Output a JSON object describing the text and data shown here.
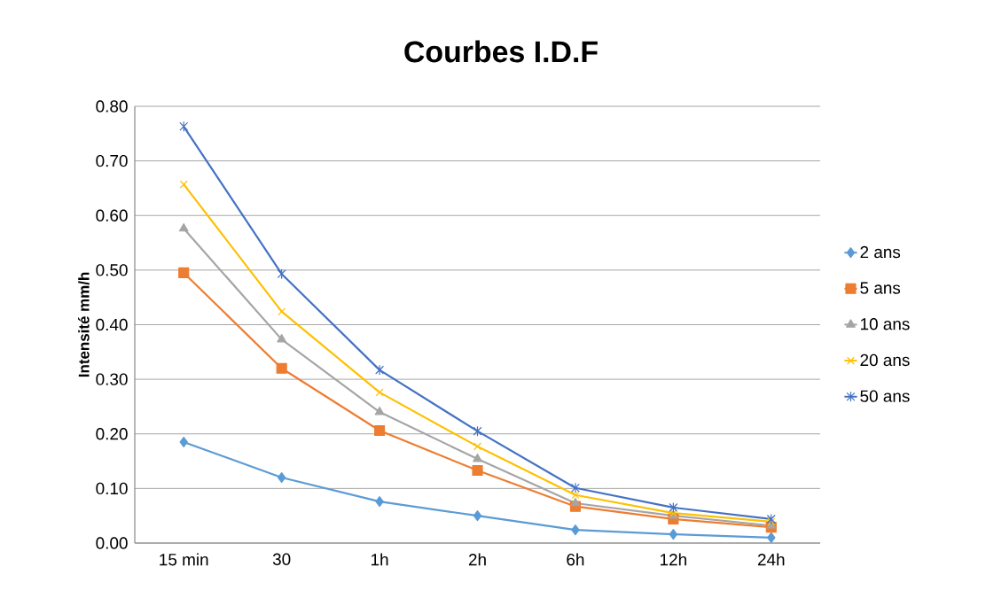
{
  "chart_data": {
    "type": "line",
    "title": "Courbes I.D.F",
    "ylabel": "Intensité mm/h",
    "categories": [
      "15 min",
      "30",
      "1h",
      "2h",
      "6h",
      "12h",
      "24h"
    ],
    "series": [
      {
        "name": "2 ans",
        "color": "#5b9bd5",
        "marker": "diamond",
        "values": [
          0.185,
          0.12,
          0.076,
          0.05,
          0.024,
          0.016,
          0.01
        ]
      },
      {
        "name": "5 ans",
        "color": "#ed7d31",
        "marker": "square",
        "values": [
          0.495,
          0.32,
          0.206,
          0.133,
          0.067,
          0.044,
          0.029
        ]
      },
      {
        "name": "10 ans",
        "color": "#a5a5a5",
        "marker": "triangle",
        "values": [
          0.576,
          0.373,
          0.24,
          0.154,
          0.073,
          0.05,
          0.032
        ]
      },
      {
        "name": "20 ans",
        "color": "#ffc000",
        "marker": "cross",
        "values": [
          0.657,
          0.424,
          0.276,
          0.177,
          0.088,
          0.055,
          0.039
        ]
      },
      {
        "name": "50 ans",
        "color": "#4472c4",
        "marker": "cross",
        "values": [
          0.763,
          0.493,
          0.317,
          0.205,
          0.101,
          0.065,
          0.044
        ]
      }
    ],
    "ylim": [
      0,
      0.8
    ],
    "yticks": [
      {
        "value": 0,
        "label": "0.00"
      },
      {
        "value": 0.1,
        "label": "0.10"
      },
      {
        "value": 0.2,
        "label": "0.20"
      },
      {
        "value": 0.3,
        "label": "0.30"
      },
      {
        "value": 0.4,
        "label": "0.40"
      },
      {
        "value": 0.5,
        "label": "0.50"
      },
      {
        "value": 0.6,
        "label": "0.60"
      },
      {
        "value": 0.7,
        "label": "0.70"
      },
      {
        "value": 0.8,
        "label": "0.80"
      }
    ],
    "grid": "y",
    "legend": "right",
    "line_style": "solid"
  }
}
